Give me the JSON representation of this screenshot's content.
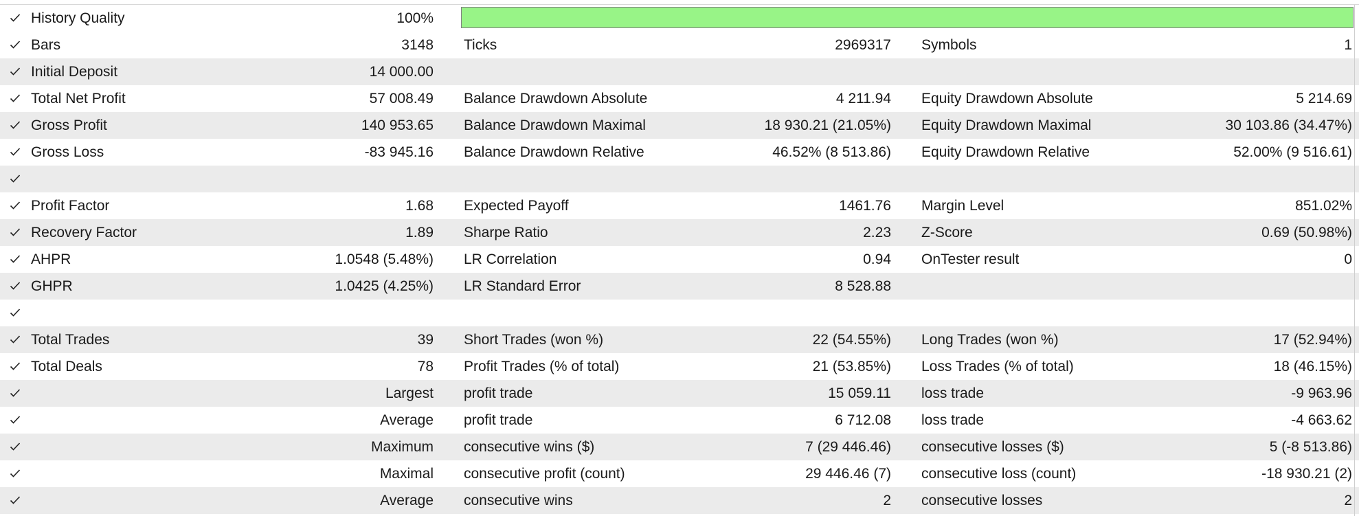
{
  "colors": {
    "quality_bar_fill": "#98f487",
    "row_alt_bg": "#ebebeb",
    "row_bg": "#ffffff"
  },
  "history_quality": {
    "label": "History Quality",
    "value": "100%",
    "bar_fraction": 1.0
  },
  "rows": [
    {
      "l1": "Bars",
      "v1": "3148",
      "l2": "Ticks",
      "v2": "2969317",
      "l3": "Symbols",
      "v3": "1"
    },
    {
      "l1": "Initial Deposit",
      "v1": "14 000.00",
      "l2": "",
      "v2": "",
      "l3": "",
      "v3": ""
    },
    {
      "l1": "Total Net Profit",
      "v1": "57 008.49",
      "l2": "Balance Drawdown Absolute",
      "v2": "4 211.94",
      "l3": "Equity Drawdown Absolute",
      "v3": "5 214.69"
    },
    {
      "l1": "Gross Profit",
      "v1": "140 953.65",
      "l2": "Balance Drawdown Maximal",
      "v2": "18 930.21 (21.05%)",
      "l3": "Equity Drawdown Maximal",
      "v3": "30 103.86 (34.47%)"
    },
    {
      "l1": "Gross Loss",
      "v1": "-83 945.16",
      "l2": "Balance Drawdown Relative",
      "v2": "46.52% (8 513.86)",
      "l3": "Equity Drawdown Relative",
      "v3": "52.00% (9 516.61)"
    },
    {
      "l1": "",
      "v1": "",
      "l2": "",
      "v2": "",
      "l3": "",
      "v3": ""
    },
    {
      "l1": "Profit Factor",
      "v1": "1.68",
      "l2": "Expected Payoff",
      "v2": "1461.76",
      "l3": "Margin Level",
      "v3": "851.02%"
    },
    {
      "l1": "Recovery Factor",
      "v1": "1.89",
      "l2": "Sharpe Ratio",
      "v2": "2.23",
      "l3": "Z-Score",
      "v3": "0.69 (50.98%)"
    },
    {
      "l1": "AHPR",
      "v1": "1.0548 (5.48%)",
      "l2": "LR Correlation",
      "v2": "0.94",
      "l3": "OnTester result",
      "v3": "0"
    },
    {
      "l1": "GHPR",
      "v1": "1.0425 (4.25%)",
      "l2": "LR Standard Error",
      "v2": "8 528.88",
      "l3": "",
      "v3": ""
    },
    {
      "l1": "",
      "v1": "",
      "l2": "",
      "v2": "",
      "l3": "",
      "v3": ""
    },
    {
      "l1": "Total Trades",
      "v1": "39",
      "l2": "Short Trades (won %)",
      "v2": "22 (54.55%)",
      "l3": "Long Trades (won %)",
      "v3": "17 (52.94%)"
    },
    {
      "l1": "Total Deals",
      "v1": "78",
      "l2": "Profit Trades (% of total)",
      "v2": "21 (53.85%)",
      "l3": "Loss Trades (% of total)",
      "v3": "18 (46.15%)"
    },
    {
      "l1": "",
      "v1": "Largest",
      "l2": "profit trade",
      "v2": "15 059.11",
      "l3": "loss trade",
      "v3": "-9 963.96"
    },
    {
      "l1": "",
      "v1": "Average",
      "l2": "profit trade",
      "v2": "6 712.08",
      "l3": "loss trade",
      "v3": "-4 663.62"
    },
    {
      "l1": "",
      "v1": "Maximum",
      "l2": "consecutive wins ($)",
      "v2": "7 (29 446.46)",
      "l3": "consecutive losses ($)",
      "v3": "5 (-8 513.86)"
    },
    {
      "l1": "",
      "v1": "Maximal",
      "l2": "consecutive profit (count)",
      "v2": "29 446.46 (7)",
      "l3": "consecutive loss (count)",
      "v3": "-18 930.21 (2)"
    },
    {
      "l1": "",
      "v1": "Average",
      "l2": "consecutive wins",
      "v2": "2",
      "l3": "consecutive losses",
      "v3": "2"
    }
  ]
}
